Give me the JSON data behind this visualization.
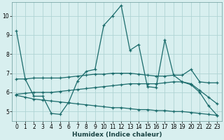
{
  "xlabel": "Humidex (Indice chaleur)",
  "xlim": [
    -0.5,
    23.5
  ],
  "ylim": [
    4.5,
    10.7
  ],
  "yticks": [
    5,
    6,
    7,
    8,
    9,
    10
  ],
  "xticks": [
    0,
    1,
    2,
    3,
    4,
    5,
    6,
    7,
    8,
    9,
    10,
    11,
    12,
    13,
    14,
    15,
    16,
    17,
    18,
    19,
    20,
    21,
    22,
    23
  ],
  "bg_color": "#d8efef",
  "grid_color": "#b0d4d4",
  "line_color": "#1a6b6b",
  "lines": [
    {
      "x": [
        0,
        1,
        2,
        3,
        4,
        5,
        6,
        7,
        8,
        9,
        10,
        11,
        12,
        13,
        14,
        15,
        16,
        17,
        18,
        19,
        20,
        21,
        22,
        23
      ],
      "y": [
        9.2,
        6.7,
        5.8,
        5.8,
        4.9,
        4.85,
        5.5,
        6.6,
        7.1,
        7.2,
        9.5,
        10.0,
        10.55,
        8.2,
        8.5,
        6.3,
        6.25,
        8.75,
        6.9,
        6.55,
        6.4,
        6.0,
        5.3,
        4.8
      ]
    },
    {
      "x": [
        0,
        1,
        2,
        3,
        4,
        5,
        6,
        7,
        8,
        9,
        10,
        11,
        12,
        13,
        14,
        15,
        16,
        17,
        18,
        19,
        20,
        21,
        22,
        23
      ],
      "y": [
        6.7,
        6.7,
        6.75,
        6.75,
        6.75,
        6.75,
        6.8,
        6.85,
        6.9,
        6.95,
        6.95,
        7.0,
        7.0,
        7.0,
        6.95,
        6.9,
        6.85,
        6.85,
        6.9,
        6.9,
        7.2,
        6.55,
        6.5,
        6.5
      ]
    },
    {
      "x": [
        0,
        1,
        2,
        3,
        4,
        5,
        6,
        7,
        8,
        9,
        10,
        11,
        12,
        13,
        14,
        15,
        16,
        17,
        18,
        19,
        20,
        21,
        22,
        23
      ],
      "y": [
        5.9,
        5.95,
        6.0,
        6.0,
        6.0,
        6.05,
        6.1,
        6.15,
        6.2,
        6.25,
        6.3,
        6.35,
        6.4,
        6.45,
        6.45,
        6.45,
        6.45,
        6.5,
        6.55,
        6.55,
        6.45,
        6.1,
        5.75,
        5.4
      ]
    },
    {
      "x": [
        0,
        1,
        2,
        3,
        4,
        5,
        6,
        7,
        8,
        9,
        10,
        11,
        12,
        13,
        14,
        15,
        16,
        17,
        18,
        19,
        20,
        21,
        22,
        23
      ],
      "y": [
        5.85,
        5.75,
        5.65,
        5.6,
        5.55,
        5.5,
        5.45,
        5.4,
        5.35,
        5.3,
        5.25,
        5.2,
        5.2,
        5.15,
        5.1,
        5.1,
        5.05,
        5.05,
        5.0,
        5.0,
        4.95,
        4.9,
        4.85,
        4.8
      ]
    }
  ]
}
